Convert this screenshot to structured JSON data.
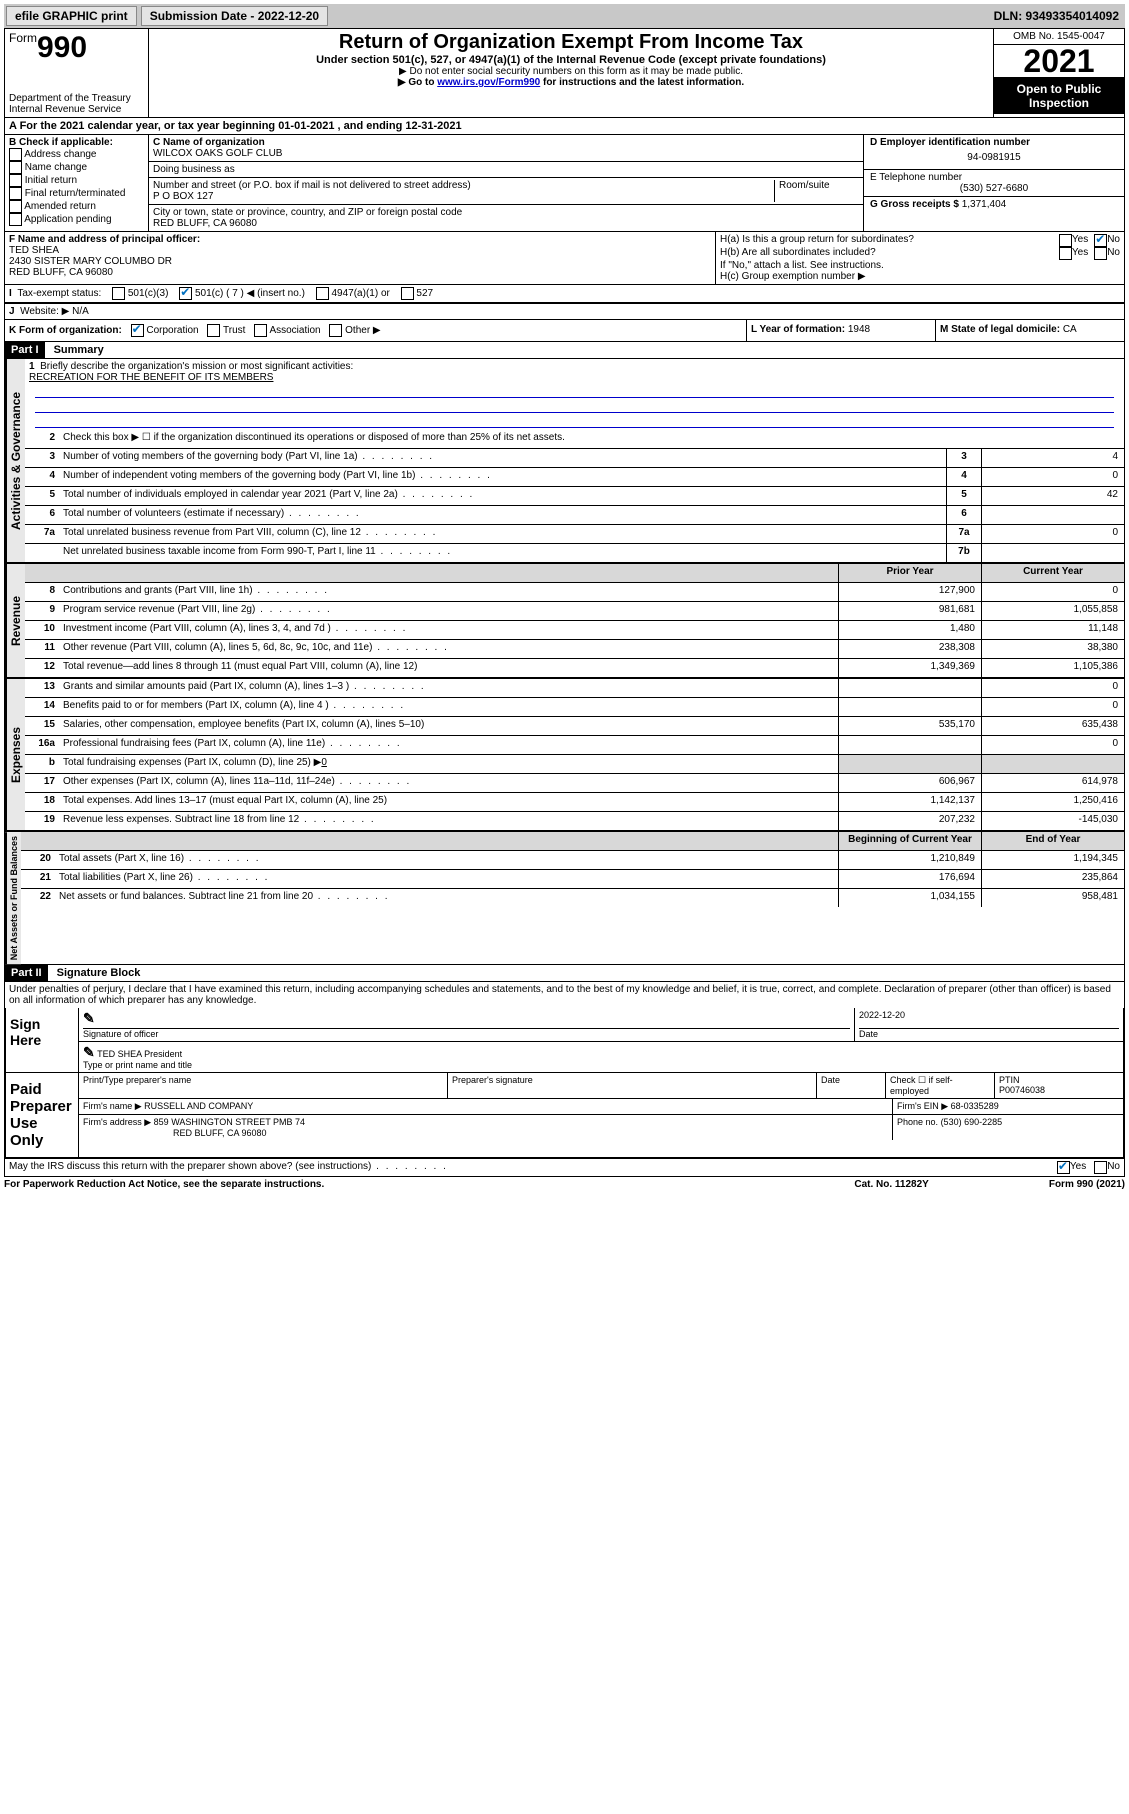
{
  "topbar": {
    "efile": "efile GRAPHIC print",
    "submission_label": "Submission Date - 2022-12-20",
    "dln": "DLN: 93493354014092"
  },
  "header": {
    "form_word": "Form",
    "form_number": "990",
    "dept": "Department of the Treasury",
    "irs": "Internal Revenue Service",
    "title": "Return of Organization Exempt From Income Tax",
    "subtitle": "Under section 501(c), 527, or 4947(a)(1) of the Internal Revenue Code (except private foundations)",
    "note1": "▶ Do not enter social security numbers on this form as it may be made public.",
    "note2_pre": "▶ Go to ",
    "note2_link": "www.irs.gov/Form990",
    "note2_post": " for instructions and the latest information.",
    "omb": "OMB No. 1545-0047",
    "year": "2021",
    "inspection": "Open to Public Inspection"
  },
  "sectionA": {
    "line": "A For the 2021 calendar year, or tax year beginning 01-01-2021   , and ending 12-31-2021"
  },
  "sectionB": {
    "title": "B Check if applicable:",
    "options": [
      "Address change",
      "Name change",
      "Initial return",
      "Final return/terminated",
      "Amended return",
      "Application pending"
    ]
  },
  "sectionC": {
    "name_label": "C Name of organization",
    "name": "WILCOX OAKS GOLF CLUB",
    "dba_label": "Doing business as",
    "street_label": "Number and street (or P.O. box if mail is not delivered to street address)",
    "room_label": "Room/suite",
    "street": "P O BOX 127",
    "city_label": "City or town, state or province, country, and ZIP or foreign postal code",
    "city": "RED BLUFF, CA  96080"
  },
  "sectionD": {
    "label": "D Employer identification number",
    "value": "94-0981915"
  },
  "sectionE": {
    "label": "E Telephone number",
    "value": "(530) 527-6680"
  },
  "sectionG": {
    "label": "G Gross receipts $",
    "value": "1,371,404"
  },
  "sectionF": {
    "label": "F Name and address of principal officer:",
    "name": "TED SHEA",
    "addr1": "2430 SISTER MARY COLUMBO DR",
    "addr2": "RED BLUFF, CA  96080"
  },
  "sectionH": {
    "ha_label": "H(a)  Is this a group return for subordinates?",
    "hb_label": "H(b)  Are all subordinates included?",
    "instr": "If \"No,\" attach a list. See instructions.",
    "hc_label": "H(c)  Group exemption number ▶",
    "yes": "Yes",
    "no": "No"
  },
  "sectionI": {
    "label": "Tax-exempt status:",
    "opt1": "501(c)(3)",
    "opt2": "501(c) ( 7 ) ◀ (insert no.)",
    "opt3": "4947(a)(1) or",
    "opt4": "527"
  },
  "sectionJ": {
    "label": "Website: ▶",
    "value": "N/A"
  },
  "sectionK": {
    "label": "K Form of organization:",
    "corp": "Corporation",
    "trust": "Trust",
    "assoc": "Association",
    "other": "Other ▶"
  },
  "sectionL": {
    "label": "L Year of formation:",
    "value": "1948"
  },
  "sectionM": {
    "label": "M State of legal domicile:",
    "value": "CA"
  },
  "part1": {
    "header": "Part I",
    "title": "Summary"
  },
  "activities": {
    "vlabel": "Activities & Governance",
    "line1": "Briefly describe the organization's mission or most significant activities:",
    "mission": "RECREATION FOR THE BENEFIT OF ITS MEMBERS",
    "line2": "Check this box ▶ ☐ if the organization discontinued its operations or disposed of more than 25% of its net assets.",
    "line3": "Number of voting members of the governing body (Part VI, line 1a)",
    "line4": "Number of independent voting members of the governing body (Part VI, line 1b)",
    "line5": "Total number of individuals employed in calendar year 2021 (Part V, line 2a)",
    "line6": "Total number of volunteers (estimate if necessary)",
    "line7a": "Total unrelated business revenue from Part VIII, column (C), line 12",
    "line7b": "Net unrelated business taxable income from Form 990-T, Part I, line 11",
    "v3": "4",
    "v4": "0",
    "v5": "42",
    "v6": "",
    "v7a": "0",
    "v7b": ""
  },
  "revenue": {
    "vlabel": "Revenue",
    "head_prior": "Prior Year",
    "head_current": "Current Year",
    "l8": "Contributions and grants (Part VIII, line 1h)",
    "l9": "Program service revenue (Part VIII, line 2g)",
    "l10": "Investment income (Part VIII, column (A), lines 3, 4, and 7d )",
    "l11": "Other revenue (Part VIII, column (A), lines 5, 6d, 8c, 9c, 10c, and 11e)",
    "l12": "Total revenue—add lines 8 through 11 (must equal Part VIII, column (A), line 12)",
    "p8": "127,900",
    "c8": "0",
    "p9": "981,681",
    "c9": "1,055,858",
    "p10": "1,480",
    "c10": "11,148",
    "p11": "238,308",
    "c11": "38,380",
    "p12": "1,349,369",
    "c12": "1,105,386"
  },
  "expenses": {
    "vlabel": "Expenses",
    "l13": "Grants and similar amounts paid (Part IX, column (A), lines 1–3 )",
    "l14": "Benefits paid to or for members (Part IX, column (A), line 4 )",
    "l15": "Salaries, other compensation, employee benefits (Part IX, column (A), lines 5–10)",
    "l16a": "Professional fundraising fees (Part IX, column (A), line 11e)",
    "l16b_pre": "Total fundraising expenses (Part IX, column (D), line 25) ▶",
    "l16b_val": "0",
    "l17": "Other expenses (Part IX, column (A), lines 11a–11d, 11f–24e)",
    "l18": "Total expenses. Add lines 13–17 (must equal Part IX, column (A), line 25)",
    "l19": "Revenue less expenses. Subtract line 18 from line 12",
    "p13": "",
    "c13": "0",
    "p14": "",
    "c14": "0",
    "p15": "535,170",
    "c15": "635,438",
    "p16a": "",
    "c16a": "0",
    "p17": "606,967",
    "c17": "614,978",
    "p18": "1,142,137",
    "c18": "1,250,416",
    "p19": "207,232",
    "c19": "-145,030"
  },
  "netassets": {
    "vlabel": "Net Assets or Fund Balances",
    "head_begin": "Beginning of Current Year",
    "head_end": "End of Year",
    "l20": "Total assets (Part X, line 16)",
    "l21": "Total liabilities (Part X, line 26)",
    "l22": "Net assets or fund balances. Subtract line 21 from line 20",
    "p20": "1,210,849",
    "c20": "1,194,345",
    "p21": "176,694",
    "c21": "235,864",
    "p22": "1,034,155",
    "c22": "958,481"
  },
  "part2": {
    "header": "Part II",
    "title": "Signature Block",
    "declaration": "Under penalties of perjury, I declare that I have examined this return, including accompanying schedules and statements, and to the best of my knowledge and belief, it is true, correct, and complete. Declaration of preparer (other than officer) is based on all information of which preparer has any knowledge."
  },
  "sign": {
    "label": "Sign Here",
    "sig_label": "Signature of officer",
    "date": "2022-12-20",
    "date_label": "Date",
    "name": "TED SHEA  President",
    "name_label": "Type or print name and title"
  },
  "preparer": {
    "label": "Paid Preparer Use Only",
    "h1": "Print/Type preparer's name",
    "h2": "Preparer's signature",
    "h3": "Date",
    "h4_check": "Check ☐ if self-employed",
    "h5_label": "PTIN",
    "ptin": "P00746038",
    "firm_name_label": "Firm's name    ▶",
    "firm_name": "RUSSELL AND COMPANY",
    "firm_ein_label": "Firm's EIN ▶",
    "firm_ein": "68-0335289",
    "firm_addr_label": "Firm's address ▶",
    "firm_addr1": "859 WASHINGTON STREET PMB 74",
    "firm_addr2": "RED BLUFF, CA  96080",
    "phone_label": "Phone no.",
    "phone": "(530) 690-2285"
  },
  "discuss": {
    "label": "May the IRS discuss this return with the preparer shown above? (see instructions)",
    "yes": "Yes",
    "no": "No"
  },
  "footer": {
    "left": "For Paperwork Reduction Act Notice, see the separate instructions.",
    "mid": "Cat. No. 11282Y",
    "right": "Form 990 (2021)"
  }
}
